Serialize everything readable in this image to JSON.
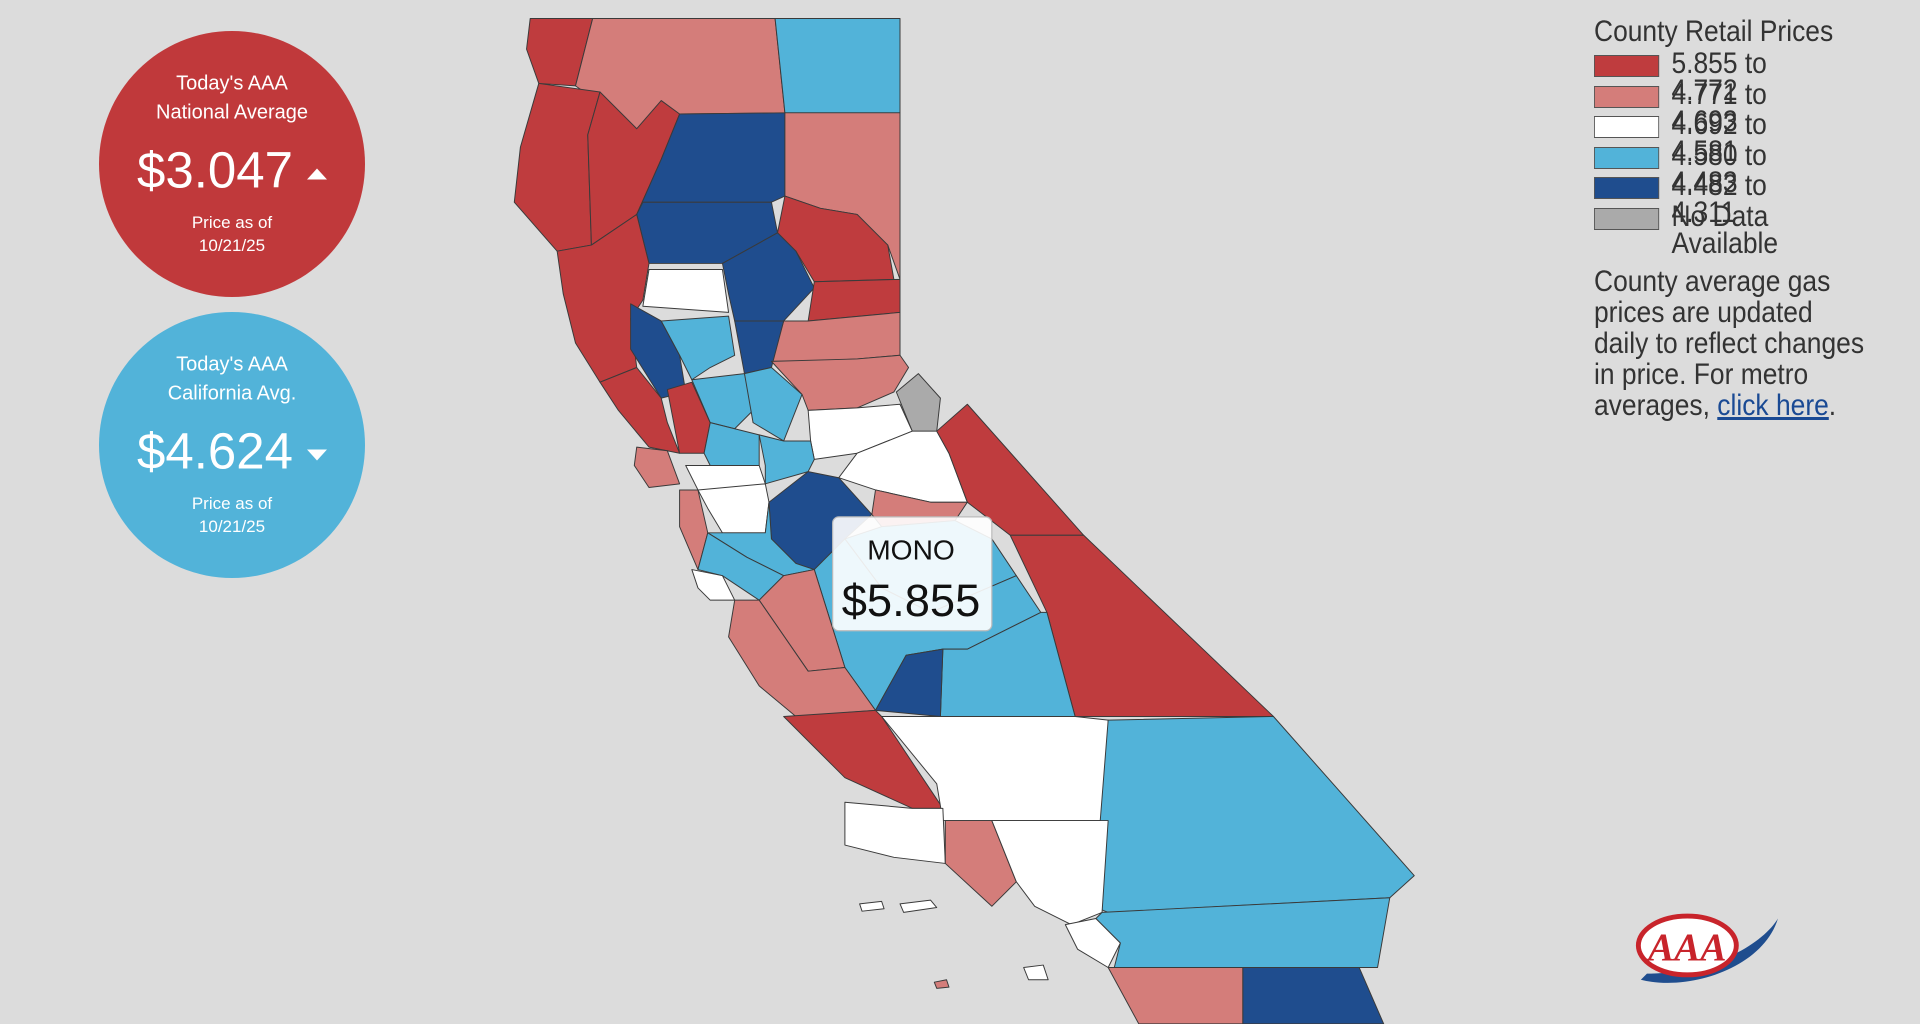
{
  "national": {
    "title_line1": "Today's AAA",
    "title_line2": "National Average",
    "price": "$3.047",
    "date_label": "Price as of",
    "date": "10/21/25"
  },
  "california": {
    "title_line1": "Today's AAA",
    "title_line2": "California Avg.",
    "price": "$4.624",
    "date_label": "Price as of",
    "date": "10/21/25"
  },
  "legend": {
    "title": "County Retail Prices",
    "items": [
      {
        "label": "5.855 to 4.772",
        "color": "#bf3c3e"
      },
      {
        "label": "4.771 to 4.693",
        "color": "#d47d7a"
      },
      {
        "label": "4.692 to 4.581",
        "color": "#ffffff"
      },
      {
        "label": "4.580 to 4.483",
        "color": "#52b3d9"
      },
      {
        "label": "4.482 to 4.311",
        "color": "#1f4d8e"
      },
      {
        "label": "No Data Available",
        "color": "#aaaaaa"
      }
    ]
  },
  "note": {
    "lines": [
      "County average gas",
      "prices are updated",
      "daily to reflect changes",
      "in price. For metro"
    ],
    "last_line_start": "averages,",
    "link": "click here",
    "end": "."
  },
  "tooltip": {
    "county": "MONO",
    "price": "$5.855"
  },
  "logo": "AAA"
}
